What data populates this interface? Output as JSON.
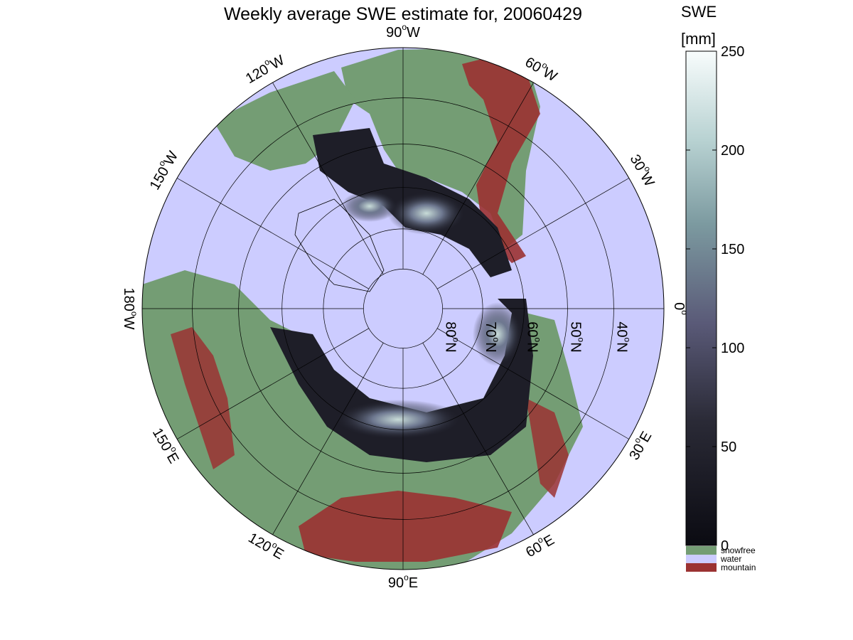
{
  "title": "Weekly average SWE estimate for, 20060429",
  "colorbar": {
    "label_top": "SWE",
    "label_unit": "[mm]",
    "ticks": [
      "0",
      "50",
      "100",
      "150",
      "200",
      "250"
    ],
    "tick_values": [
      0,
      50,
      100,
      150,
      200,
      250
    ],
    "range": [
      0,
      250
    ],
    "legend": [
      {
        "label": "snowfree",
        "color": "#749d74"
      },
      {
        "label": "water",
        "color": "#ccccff"
      },
      {
        "label": "mountain",
        "color": "#9b3232"
      }
    ]
  },
  "map": {
    "projection": "polar stereographic, north pole",
    "longitude_labels": [
      {
        "text": "90",
        "suffix": "W",
        "lon": -90
      },
      {
        "text": "120",
        "suffix": "W",
        "lon": -120
      },
      {
        "text": "150",
        "suffix": "W",
        "lon": -150
      },
      {
        "text": "180",
        "suffix": "W",
        "lon": 180
      },
      {
        "text": "150",
        "suffix": "E",
        "lon": 150
      },
      {
        "text": "120",
        "suffix": "E",
        "lon": 120
      },
      {
        "text": "90",
        "suffix": "E",
        "lon": 90
      },
      {
        "text": "60",
        "suffix": "E",
        "lon": 60
      },
      {
        "text": "30",
        "suffix": "E",
        "lon": 30
      },
      {
        "text": "0",
        "suffix": "",
        "lon": 0
      },
      {
        "text": "30",
        "suffix": "W",
        "lon": -30
      },
      {
        "text": "60",
        "suffix": "W",
        "lon": -60
      }
    ],
    "latitude_labels": [
      {
        "text": "80",
        "suffix": "N",
        "lat": 80
      },
      {
        "text": "70",
        "suffix": "N",
        "lat": 70
      },
      {
        "text": "60",
        "suffix": "N",
        "lat": 60
      },
      {
        "text": "50",
        "suffix": "N",
        "lat": 50
      },
      {
        "text": "40",
        "suffix": "N",
        "lat": 40
      }
    ],
    "colors": {
      "water": "#ccccff",
      "snowfree": "#749d74",
      "mountain": "#9b3232",
      "swe_low": "#0b0b12",
      "swe_mid": "#5a5a78",
      "swe_high": "#f8fcfc"
    }
  }
}
